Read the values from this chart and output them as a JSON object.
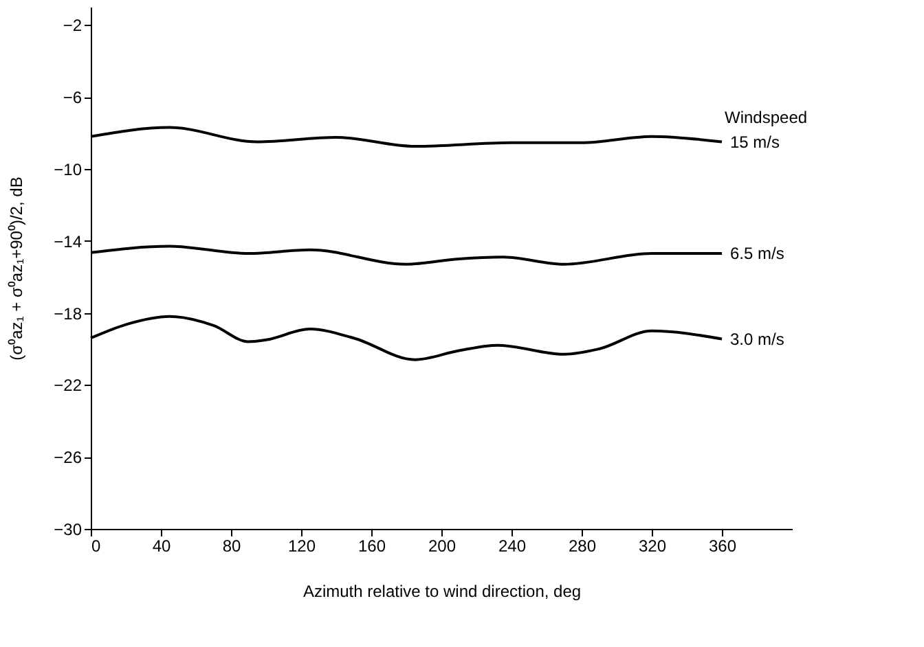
{
  "chart_data": {
    "type": "line",
    "xlabel": "Azimuth relative to wind direction, deg",
    "ylabel": "(σ⁰az₁ + σ⁰az₁+90⁰)/2, dB",
    "legend_title": "Windspeed",
    "xlim": [
      0,
      400
    ],
    "xticks": [
      0,
      40,
      80,
      120,
      160,
      200,
      240,
      280,
      320,
      360
    ],
    "ylim": [
      -30,
      -1
    ],
    "yticks": [
      -30,
      -26,
      -22,
      -18,
      -14,
      -10,
      -6,
      -2
    ],
    "grid": false,
    "legend": false,
    "marker": "none",
    "line_style": "solid",
    "series": [
      {
        "name": "15 m/s",
        "color": "#000000",
        "x": [
          0,
          45,
          95,
          140,
          185,
          240,
          280,
          320,
          360
        ],
        "values": [
          -8.2,
          -7.7,
          -8.5,
          -8.25,
          -8.75,
          -8.55,
          -8.55,
          -8.2,
          -8.5
        ]
      },
      {
        "name": "6.5 m/s",
        "color": "#000000",
        "x": [
          0,
          45,
          90,
          125,
          180,
          210,
          235,
          270,
          320,
          360
        ],
        "values": [
          -14.65,
          -14.3,
          -14.7,
          -14.5,
          -15.3,
          -15.0,
          -14.9,
          -15.3,
          -14.7,
          -14.7
        ]
      },
      {
        "name": "3.0 m/s",
        "color": "#000000",
        "x": [
          0,
          20,
          45,
          70,
          90,
          100,
          125,
          150,
          185,
          210,
          232,
          270,
          290,
          320,
          360
        ],
        "values": [
          -19.4,
          -18.65,
          -18.2,
          -18.7,
          -19.6,
          -19.5,
          -18.9,
          -19.4,
          -20.6,
          -20.1,
          -19.8,
          -20.3,
          -20.0,
          -19.0,
          -19.45
        ]
      }
    ]
  }
}
